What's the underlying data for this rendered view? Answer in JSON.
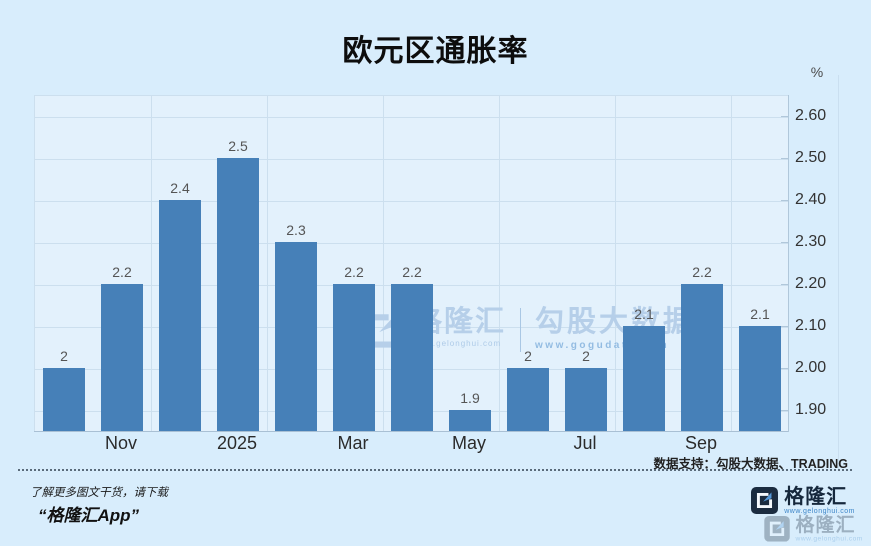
{
  "chart_data": {
    "type": "bar",
    "title": "欧元区通胀率",
    "unit_label": "%",
    "values": [
      2,
      2.2,
      2.4,
      2.5,
      2.3,
      2.2,
      2.2,
      1.9,
      2,
      2,
      2.1,
      2.2,
      2.1
    ],
    "bar_value_labels": [
      "2",
      "2.2",
      "2.4",
      "2.5",
      "2.3",
      "2.2",
      "2.2",
      "1.9",
      "2",
      "2",
      "2.1",
      "2.2",
      "2.1"
    ],
    "x_ticks": [
      {
        "label": "Nov",
        "bar_index": 1
      },
      {
        "label": "2025",
        "bar_index": 3
      },
      {
        "label": "Mar",
        "bar_index": 5
      },
      {
        "label": "May",
        "bar_index": 7
      },
      {
        "label": "Jul",
        "bar_index": 9
      },
      {
        "label": "Sep",
        "bar_index": 11
      }
    ],
    "y_ticks": [
      {
        "value": 2.6,
        "label": "2.60"
      },
      {
        "value": 2.5,
        "label": "2.50"
      },
      {
        "value": 2.4,
        "label": "2.40"
      },
      {
        "value": 2.3,
        "label": "2.30"
      },
      {
        "value": 2.2,
        "label": "2.20"
      },
      {
        "value": 2.1,
        "label": "2.10"
      },
      {
        "value": 2.0,
        "label": "2.00"
      },
      {
        "value": 1.9,
        "label": "1.90"
      }
    ],
    "ylim": [
      1.85,
      2.65
    ],
    "grid": true,
    "legend": "none",
    "y_axis_position": "right",
    "bar_color": "#4680b8"
  },
  "watermark": {
    "brand": "格隆汇",
    "brand_url": "www.gelonghui.com",
    "partner": "勾股大数据",
    "partner_url": "www.gogudata.com"
  },
  "datasource": "数据支持：勾股大数据、TRADING",
  "footer": {
    "promo_line1": "了解更多图文干货，请下载",
    "promo_line2": "“格隆汇App”",
    "logo_text": "格隆汇",
    "logo_url": "www.gelonghui.com"
  },
  "colors": {
    "page_bg": "#d8edfc",
    "plot_bg": "#e3f1fc",
    "bar": "#4680b8",
    "grid": "#ccdfee",
    "title_text": "#0d0d0d",
    "tick_text": "#333333",
    "watermark_blue": "#b6cfe9",
    "logo_navy": "#1b2c40",
    "logo_blue": "#3e86c8"
  }
}
